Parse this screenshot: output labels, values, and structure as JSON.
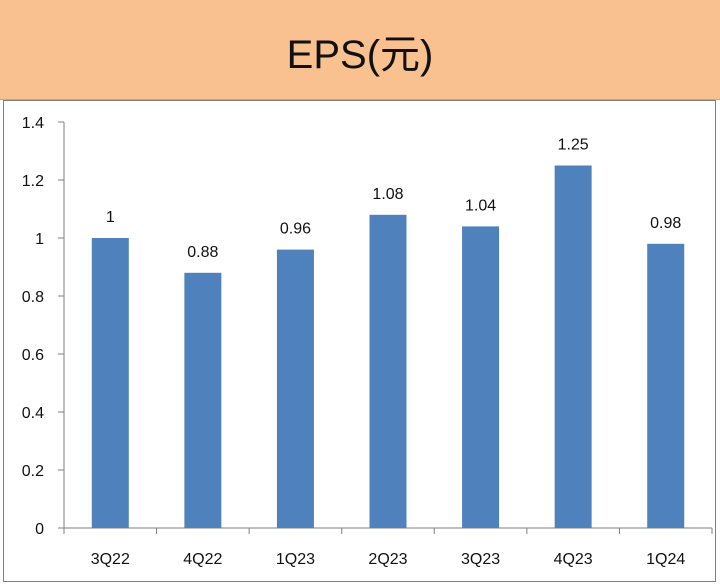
{
  "header": {
    "title": "EPS(元)"
  },
  "chart_data": {
    "type": "bar",
    "title": "EPS(元)",
    "categories": [
      "3Q22",
      "4Q22",
      "1Q23",
      "2Q23",
      "3Q23",
      "4Q23",
      "1Q24"
    ],
    "values": [
      1,
      0.88,
      0.96,
      1.08,
      1.04,
      1.25,
      0.98
    ],
    "data_labels": [
      "1",
      "0.88",
      "0.96",
      "1.08",
      "1.04",
      "1.25",
      "0.98"
    ],
    "ylim": [
      0,
      1.4
    ],
    "yticks": [
      "0",
      "0.2",
      "0.4",
      "0.6",
      "0.8",
      "1",
      "1.2",
      "1.4"
    ],
    "bar_color": "#4f81bd",
    "grid": false,
    "legend": "none",
    "xlabel": "",
    "ylabel": ""
  }
}
